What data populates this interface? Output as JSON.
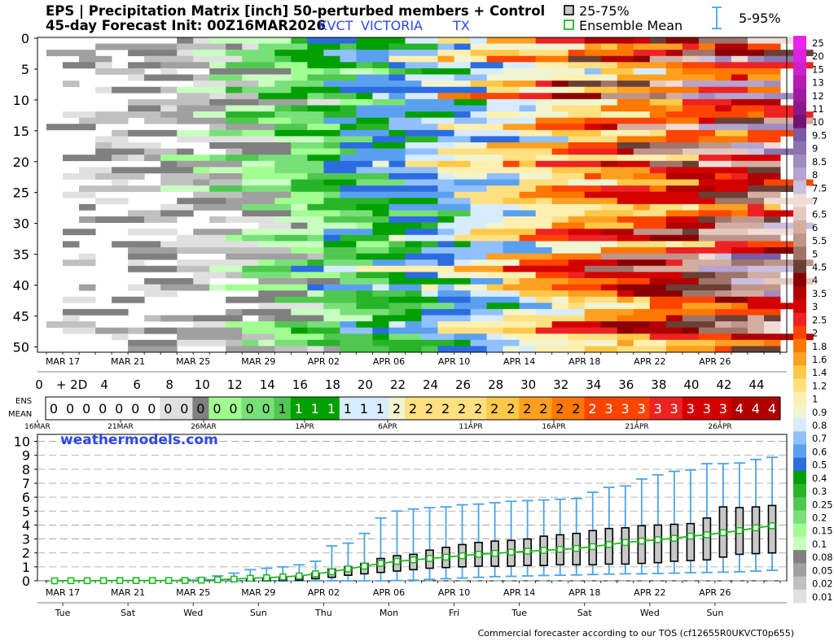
{
  "header": {
    "title": "EPS | Precipitation Matrix [inch]  50-perturbed members + Control",
    "init": "45-day Forecast Init: 00Z16MAR2026",
    "station": "KVCT",
    "city": "VICTORIA",
    "state": "TX",
    "legend_box": "25-75%",
    "legend_mean": "Ensemble Mean",
    "legend_whisker": "5-95%"
  },
  "footer": "Commercial forecaster according to our TOS (cf12655R0UKVCT0p655)",
  "watermark": "weathermodels.com",
  "colors": {
    "title_blue": "#2f47e8",
    "whisker": "#4aa3e8",
    "mean_line": "#22b822",
    "box_fill": "#c8c8c8"
  },
  "chart_data": [
    {
      "type": "heatmap",
      "title": "EPS | Precipitation Matrix [inch]",
      "y_ticks": [
        "0",
        "5",
        "10",
        "15",
        "20",
        "25",
        "30",
        "35",
        "40",
        "45",
        "50"
      ],
      "x_date_ticks": [
        "MAR 17",
        "MAR 21",
        "MAR 25",
        "MAR 29",
        "APR 02",
        "APR 06",
        "APR 10",
        "APR 14",
        "APR 18",
        "APR 22",
        "APR 26"
      ],
      "day_ticks": [
        "0",
        "+ 2D",
        "4",
        "6",
        "8",
        "10",
        "12",
        "14",
        "16",
        "18",
        "20",
        "22",
        "24",
        "26",
        "28",
        "30",
        "32",
        "34",
        "36",
        "38",
        "40",
        "42",
        "44"
      ],
      "color_scale": {
        "labels": [
          "25",
          "20",
          "15",
          "13",
          "12",
          "11",
          "10",
          "9.5",
          "9",
          "8.5",
          "8",
          "7.5",
          "7",
          "6.5",
          "6",
          "5.5",
          "5",
          "4.5",
          "4",
          "3.5",
          "3",
          "2.5",
          "2",
          "1.8",
          "1.6",
          "1.4",
          "1.2",
          "1",
          "0.9",
          "0.8",
          "0.7",
          "0.6",
          "0.5",
          "0.4",
          "0.3",
          "0.25",
          "0.2",
          "0.15",
          "0.1",
          "0.08",
          "0.05",
          "0.02",
          "0.01"
        ],
        "colors": [
          "#ee22ee",
          "#dd22dd",
          "#cc22cc",
          "#b81ab8",
          "#a01aa0",
          "#8a1a8a",
          "#741274",
          "#7a5aa0",
          "#8c72b0",
          "#a08cc0",
          "#b4a4d0",
          "#cac0e0",
          "#f0dcd6",
          "#e4c8be",
          "#d4aca0",
          "#c09488",
          "#a07468",
          "#6a4036",
          "#8a0000",
          "#b00000",
          "#d40000",
          "#ee2222",
          "#ff4400",
          "#ff7800",
          "#ffa020",
          "#ffc848",
          "#ffe080",
          "#fff0b0",
          "#f0f4d0",
          "#d8ecff",
          "#90c0ff",
          "#5aa0f0",
          "#2c6ce0",
          "#00a000",
          "#28b428",
          "#50c850",
          "#78e078",
          "#a0ff90",
          "#c8ffc0",
          "#808080",
          "#a0a0a0",
          "#c0c0c0",
          "#e0e0e0"
        ]
      },
      "members": 51,
      "forecast_days": 45
    },
    {
      "type": "table",
      "row_label": [
        "ENS",
        "MEAN"
      ],
      "date_ticks": [
        "16MAR",
        "21MAR",
        "26MAR",
        "1APR",
        "6APR",
        "11APR",
        "16APR",
        "21APR",
        "26APR"
      ],
      "values": [
        "0",
        "0",
        "0",
        "0",
        "0",
        "0",
        "0",
        "0",
        "0",
        "0",
        "0",
        "0",
        "0",
        "0",
        "1",
        "1",
        "1",
        "1",
        "1",
        "1",
        "1",
        "2",
        "2",
        "2",
        "2",
        "2",
        "2",
        "2",
        "2",
        "2",
        "2",
        "2",
        "2",
        "2",
        "3",
        "3",
        "3",
        "3",
        "3",
        "3",
        "3",
        "3",
        "4",
        "4",
        "4"
      ]
    },
    {
      "type": "line",
      "ylabel": "",
      "ylim": [
        0,
        10.5
      ],
      "y_ticks": [
        "0",
        "1",
        "2",
        "3",
        "4",
        "5",
        "6",
        "7",
        "8",
        "9",
        "10"
      ],
      "x_date_ticks": [
        "MAR 17",
        "MAR 21",
        "MAR 25",
        "MAR 29",
        "APR 02",
        "APR 06",
        "APR 10",
        "APR 14",
        "APR 18",
        "APR 22",
        "APR 26"
      ],
      "weekday_ticks": [
        "Tue",
        "Sat",
        "Wed",
        "Sun",
        "Thu",
        "Mon",
        "Fri",
        "Tue",
        "Sat",
        "Wed",
        "Sun"
      ],
      "days": [
        0,
        1,
        2,
        3,
        4,
        5,
        6,
        7,
        8,
        9,
        10,
        11,
        12,
        13,
        14,
        15,
        16,
        17,
        18,
        19,
        20,
        21,
        22,
        23,
        24,
        25,
        26,
        27,
        28,
        29,
        30,
        31,
        32,
        33,
        34,
        35,
        36,
        37,
        38,
        39,
        40,
        41,
        42,
        43,
        44
      ],
      "mean": [
        0.0,
        0.01,
        0.01,
        0.01,
        0.02,
        0.02,
        0.02,
        0.02,
        0.02,
        0.05,
        0.08,
        0.12,
        0.18,
        0.22,
        0.28,
        0.35,
        0.5,
        0.65,
        0.85,
        1.05,
        1.25,
        1.4,
        1.5,
        1.6,
        1.7,
        1.8,
        1.9,
        1.97,
        2.05,
        2.12,
        2.18,
        2.25,
        2.32,
        2.45,
        2.6,
        2.75,
        2.85,
        2.95,
        3.05,
        3.2,
        3.3,
        3.45,
        3.6,
        3.8,
        3.95
      ],
      "p25": [
        0,
        0,
        0,
        0,
        0,
        0,
        0,
        0,
        0,
        0,
        0,
        0,
        0,
        0,
        0.02,
        0.05,
        0.15,
        0.25,
        0.4,
        0.5,
        0.6,
        0.7,
        0.8,
        0.9,
        0.95,
        1.0,
        1.05,
        1.05,
        1.05,
        1.1,
        1.1,
        1.15,
        1.15,
        1.15,
        1.2,
        1.2,
        1.25,
        1.3,
        1.4,
        1.45,
        1.5,
        1.7,
        1.9,
        1.95,
        2.0
      ],
      "p75": [
        0,
        0,
        0,
        0,
        0,
        0,
        0,
        0,
        0,
        0,
        0,
        0,
        0.1,
        0.15,
        0.25,
        0.35,
        0.55,
        0.85,
        1.0,
        1.25,
        1.6,
        1.8,
        1.9,
        2.2,
        2.4,
        2.6,
        2.75,
        2.85,
        2.9,
        3.0,
        3.2,
        3.3,
        3.4,
        3.6,
        3.75,
        3.8,
        3.95,
        4.0,
        4.05,
        4.1,
        4.5,
        5.3,
        5.25,
        5.3,
        5.4
      ],
      "p5": [
        0,
        0,
        0,
        0,
        0,
        0,
        0,
        0,
        0,
        0,
        0,
        0,
        0,
        0,
        0,
        0,
        0,
        0,
        0,
        0,
        0,
        0.02,
        0.05,
        0.1,
        0.15,
        0.2,
        0.25,
        0.3,
        0.32,
        0.35,
        0.38,
        0.4,
        0.42,
        0.45,
        0.48,
        0.5,
        0.5,
        0.52,
        0.55,
        0.58,
        0.6,
        0.62,
        0.65,
        0.7,
        0.75
      ],
      "p95": [
        0.02,
        0.02,
        0.02,
        0.02,
        0.02,
        0.02,
        0.02,
        0.05,
        0.1,
        0.2,
        0.35,
        0.55,
        0.8,
        0.9,
        1.0,
        1.15,
        1.4,
        2.5,
        2.7,
        3.4,
        4.5,
        5.0,
        5.15,
        5.25,
        5.3,
        5.45,
        5.5,
        5.6,
        5.7,
        5.75,
        5.8,
        5.85,
        5.9,
        6.35,
        6.7,
        6.8,
        7.3,
        7.6,
        7.85,
        7.95,
        8.4,
        8.4,
        8.45,
        8.7,
        8.85
      ]
    }
  ]
}
